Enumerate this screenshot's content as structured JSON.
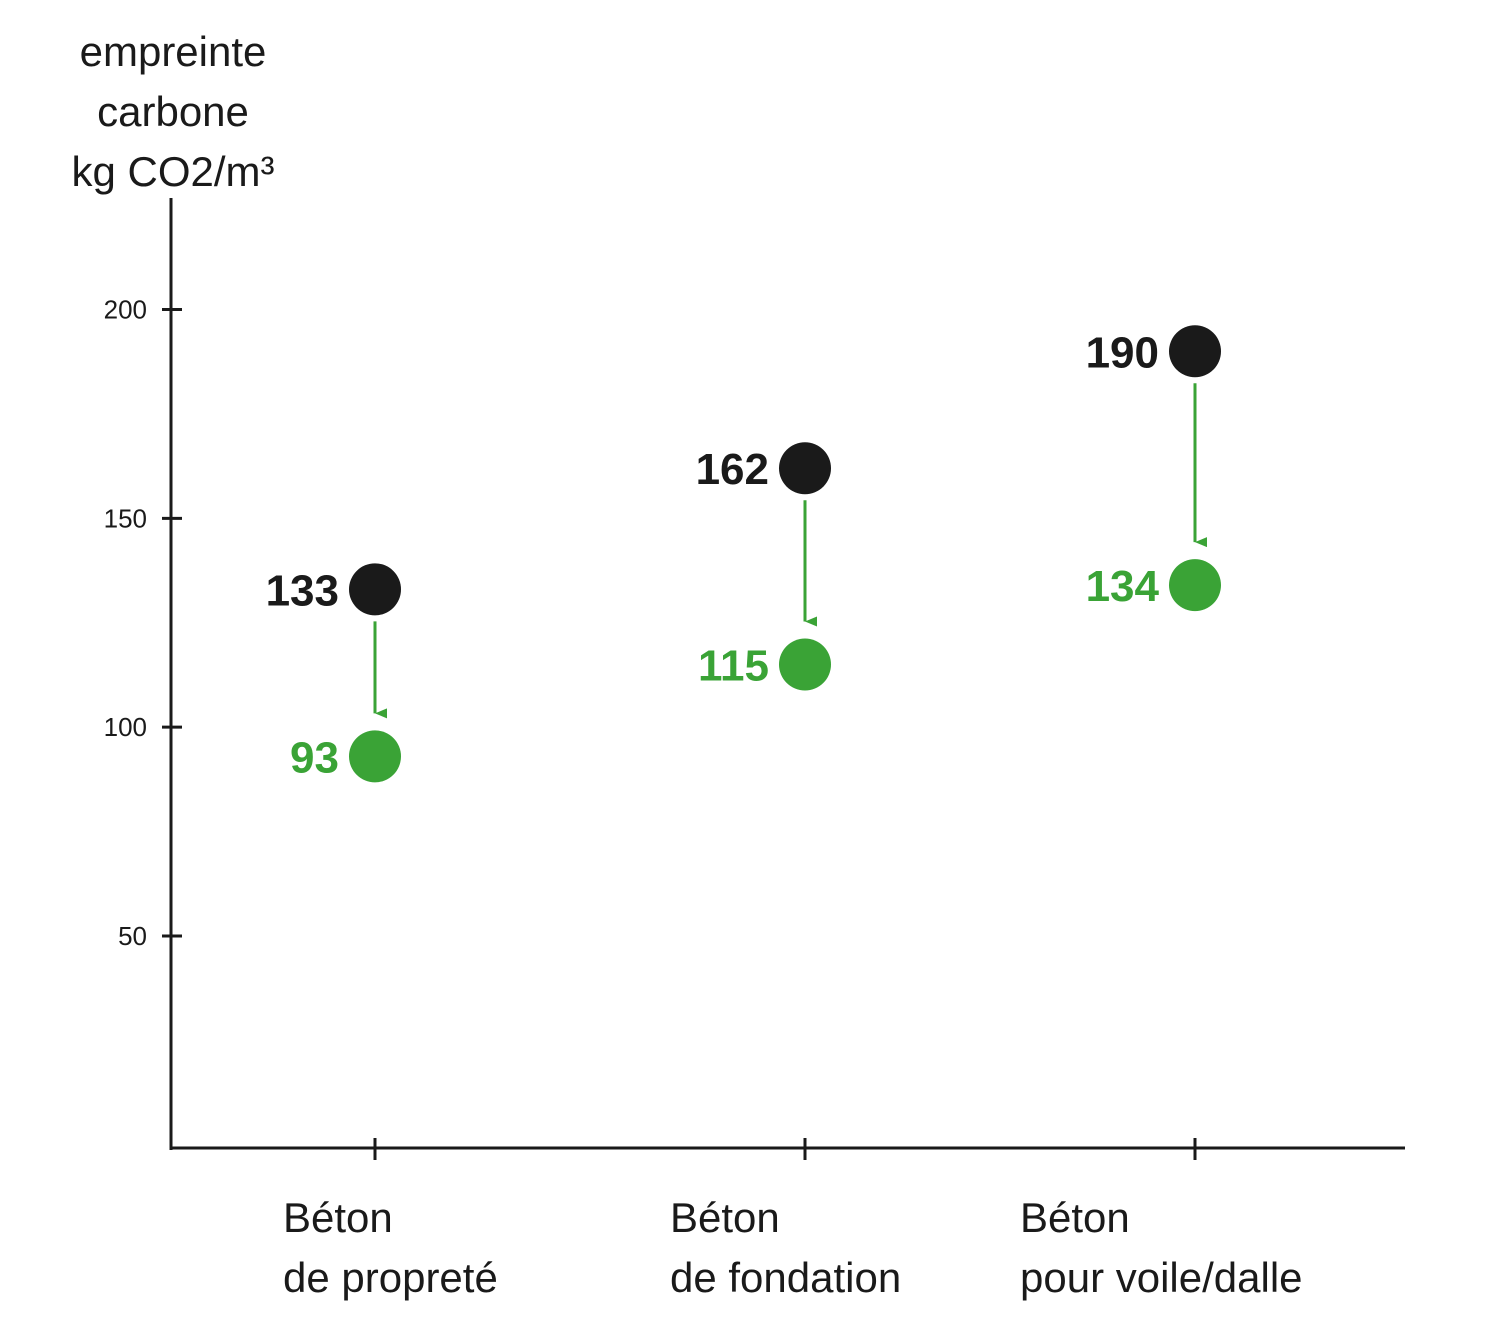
{
  "chart_data": {
    "type": "scatter",
    "ylabel_lines": [
      "empreinte",
      "carbone",
      "kg CO2/m³"
    ],
    "yticks": [
      50,
      100,
      150,
      200
    ],
    "ylim": [
      10,
      220
    ],
    "categories": [
      [
        "Béton",
        "de propreté"
      ],
      [
        "Béton",
        "de fondation"
      ],
      [
        "Béton",
        "pour voile/dalle"
      ]
    ],
    "series": [
      {
        "values": [
          133,
          162,
          190
        ],
        "color": "#1a1a1a"
      },
      {
        "values": [
          93,
          115,
          134
        ],
        "color": "#3aa336"
      }
    ],
    "arrows": "from first series to second series, green, pointing down",
    "grid": false,
    "legend": "none"
  }
}
